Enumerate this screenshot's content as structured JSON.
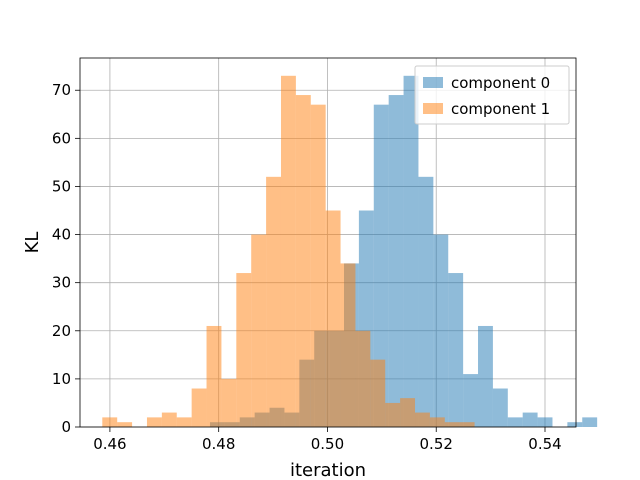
{
  "chart_data": {
    "type": "histogram",
    "xlabel": "iteration",
    "ylabel": "KL",
    "xlim": [
      0.4545,
      0.5457
    ],
    "ylim": [
      0,
      76.7
    ],
    "xticks": [
      0.46,
      0.48,
      0.5,
      0.52,
      0.54
    ],
    "xtick_labels": [
      "0.46",
      "0.48",
      "0.50",
      "0.52",
      "0.54"
    ],
    "yticks": [
      0,
      10,
      20,
      30,
      40,
      50,
      60,
      70
    ],
    "ytick_labels": [
      "0",
      "10",
      "20",
      "30",
      "40",
      "50",
      "60",
      "70"
    ],
    "grid": true,
    "legend_position": "top-right",
    "alpha": 0.5,
    "series": [
      {
        "name": "component 0",
        "color": "#1f77b4",
        "bin_start": 0.4784,
        "bin_width": 0.002738,
        "counts": [
          1,
          1,
          2,
          3,
          4,
          3,
          14,
          20,
          20,
          34,
          45,
          67,
          69,
          73,
          52,
          40,
          32,
          11,
          21,
          8,
          2,
          3,
          2,
          0,
          1,
          2
        ]
      },
      {
        "name": "component 1",
        "color": "#ff7f0e",
        "bin_start": 0.4586,
        "bin_width": 0.002738,
        "counts": [
          2,
          1,
          0,
          2,
          3,
          2,
          8,
          21,
          10,
          32,
          40,
          52,
          73,
          69,
          67,
          45,
          34,
          20,
          14,
          5,
          6,
          3,
          2,
          1,
          1
        ]
      }
    ]
  }
}
